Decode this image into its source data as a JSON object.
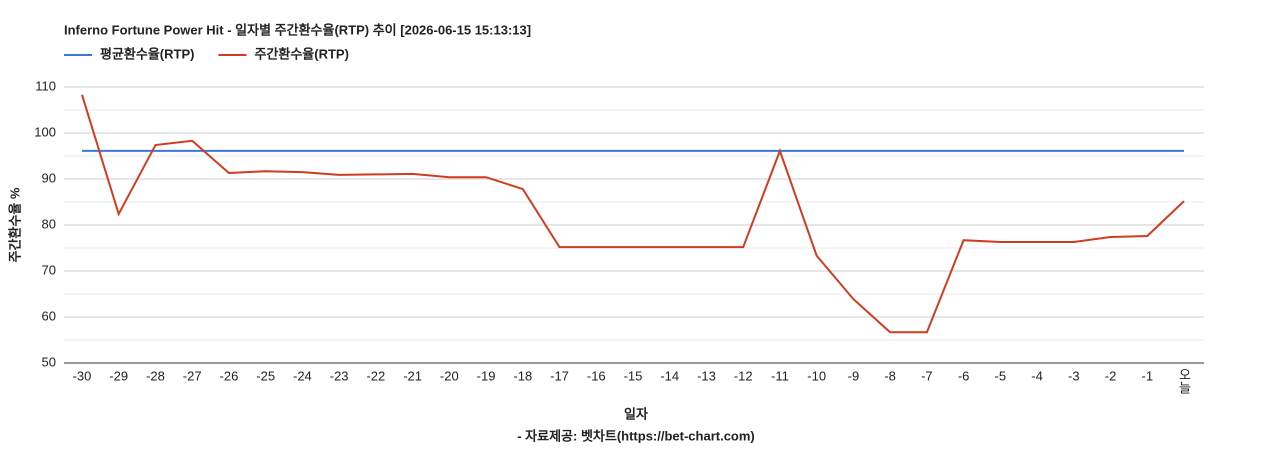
{
  "chart_data": {
    "type": "line",
    "title": "Inferno Fortune Power Hit - 일자별 주간환수율(RTP) 추이 [2026-06-15 15:13:13]",
    "x_label": "일자",
    "y_label": "주간환수율 %",
    "source": "- 자료제공: 벳차트(https://bet-chart.com)",
    "categories": [
      "-30",
      "-29",
      "-28",
      "-27",
      "-26",
      "-25",
      "-24",
      "-23",
      "-22",
      "-21",
      "-20",
      "-19",
      "-18",
      "-17",
      "-16",
      "-15",
      "-14",
      "-13",
      "-12",
      "-11",
      "-10",
      "-9",
      "-8",
      "-7",
      "-6",
      "-5",
      "-4",
      "-3",
      "-2",
      "-1",
      "오늘"
    ],
    "series": [
      {
        "name": "평균환수율(RTP)",
        "color": "#3c78d8",
        "values": [
          96.1,
          96.1,
          96.1,
          96.1,
          96.1,
          96.1,
          96.1,
          96.1,
          96.1,
          96.1,
          96.1,
          96.1,
          96.1,
          96.1,
          96.1,
          96.1,
          96.1,
          96.1,
          96.1,
          96.1,
          96.1,
          96.1,
          96.1,
          96.1,
          96.1,
          96.1,
          96.1,
          96.1,
          96.1,
          96.1,
          96.1
        ]
      },
      {
        "name": "주간환수율(RTP)",
        "color": "#d23c1e",
        "values": [
          108.3,
          82.4,
          97.4,
          98.3,
          91.3,
          91.7,
          91.5,
          90.9,
          91.0,
          91.1,
          90.4,
          90.4,
          87.8,
          75.2,
          75.2,
          75.2,
          75.2,
          75.2,
          75.2,
          96.1,
          73.3,
          63.9,
          56.7,
          56.7,
          76.7,
          76.3,
          76.3,
          76.3,
          77.4,
          77.6,
          85.2
        ]
      }
    ],
    "ylim": [
      50,
      110
    ],
    "yticks": [
      50,
      60,
      70,
      80,
      90,
      100,
      110
    ],
    "minor_yticks": [
      55,
      65,
      75,
      85,
      95,
      105
    ],
    "grid": true,
    "legend": "top-left"
  }
}
